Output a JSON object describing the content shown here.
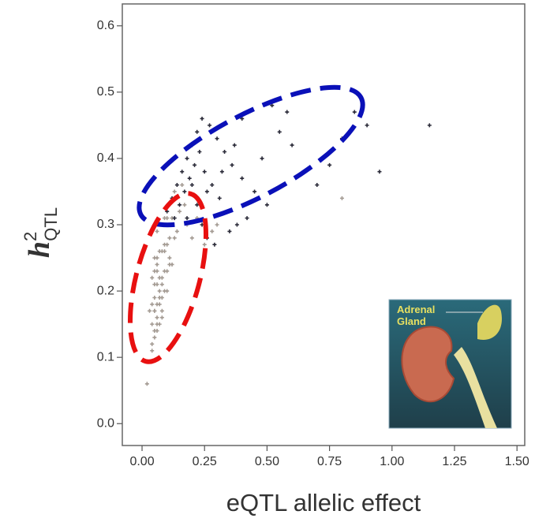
{
  "chart_data": {
    "type": "scatter",
    "xlabel": "eQTL allelic effect",
    "ylabel": {
      "base": "h",
      "sup": "2",
      "sub": "QTL"
    },
    "annotations": [
      "Adrenal",
      "Gland"
    ],
    "xlim": [
      -0.079,
      1.531
    ],
    "ylim": [
      -0.033,
      0.633
    ],
    "xticks": [
      {
        "value": 0,
        "label": "0.00"
      },
      {
        "value": 0.25,
        "label": "0.25"
      },
      {
        "value": 0.5,
        "label": "0.50"
      },
      {
        "value": 0.75,
        "label": "0.75"
      },
      {
        "value": 1,
        "label": "1.00"
      },
      {
        "value": 1.25,
        "label": "1.25"
      },
      {
        "value": 1.5,
        "label": "1.50"
      }
    ],
    "yticks": [
      {
        "value": 0,
        "label": "0.0"
      },
      0.1,
      0.2,
      0.3,
      0.4,
      0.5,
      0.6
    ],
    "series": [
      {
        "color": "#a39a92",
        "x": [
          0.02,
          0.04,
          0.05,
          0.06,
          0.07,
          0.08,
          0.05,
          0.06,
          0.07,
          0.08,
          0.09,
          0.1,
          0.06,
          0.07,
          0.08,
          0.09,
          0.1,
          0.11,
          0.12,
          0.05,
          0.06,
          0.07,
          0.08,
          0.09,
          0.1,
          0.11,
          0.13,
          0.14,
          0.06,
          0.07,
          0.08,
          0.09,
          0.1,
          0.12,
          0.15,
          0.17,
          0.04,
          0.05,
          0.06,
          0.07,
          0.08,
          0.09,
          0.11,
          0.03,
          0.04,
          0.05,
          0.06,
          0.08,
          0.04,
          0.05,
          0.06,
          0.07,
          0.05,
          0.06,
          0.04,
          0.05,
          0.18,
          0.2,
          0.22,
          0.25,
          0.28,
          0.3,
          0.13,
          0.16,
          0.8
        ],
        "values": [
          0.06,
          0.11,
          0.13,
          0.14,
          0.15,
          0.16,
          0.17,
          0.18,
          0.19,
          0.19,
          0.2,
          0.2,
          0.21,
          0.22,
          0.22,
          0.23,
          0.23,
          0.24,
          0.24,
          0.25,
          0.25,
          0.26,
          0.26,
          0.27,
          0.27,
          0.28,
          0.28,
          0.29,
          0.29,
          0.3,
          0.3,
          0.31,
          0.31,
          0.31,
          0.32,
          0.33,
          0.22,
          0.23,
          0.24,
          0.2,
          0.21,
          0.26,
          0.25,
          0.17,
          0.18,
          0.19,
          0.15,
          0.17,
          0.12,
          0.14,
          0.16,
          0.18,
          0.21,
          0.23,
          0.15,
          0.17,
          0.3,
          0.28,
          0.31,
          0.27,
          0.29,
          0.3,
          0.35,
          0.36,
          0.34
        ]
      },
      {
        "color": "#2a2a38",
        "x": [
          0.08,
          0.1,
          0.12,
          0.14,
          0.16,
          0.18,
          0.2,
          0.22,
          0.24,
          0.27,
          0.3,
          0.33,
          0.36,
          0.4,
          0.45,
          0.5,
          0.13,
          0.15,
          0.17,
          0.19,
          0.21,
          0.23,
          0.25,
          0.28,
          0.31,
          0.34,
          0.38,
          0.26,
          0.29,
          0.35,
          0.42,
          0.48,
          0.55,
          0.6,
          0.65,
          0.7,
          0.75,
          0.8,
          0.85,
          0.9,
          0.95,
          1.15,
          0.52,
          0.58,
          0.4,
          0.2,
          0.22,
          0.24,
          0.18,
          0.26,
          0.32,
          0.37
        ],
        "values": [
          0.3,
          0.32,
          0.34,
          0.36,
          0.38,
          0.4,
          0.42,
          0.44,
          0.46,
          0.45,
          0.43,
          0.41,
          0.39,
          0.37,
          0.35,
          0.33,
          0.31,
          0.33,
          0.35,
          0.37,
          0.39,
          0.41,
          0.38,
          0.36,
          0.34,
          0.32,
          0.3,
          0.28,
          0.27,
          0.29,
          0.31,
          0.4,
          0.44,
          0.42,
          0.38,
          0.36,
          0.39,
          0.43,
          0.47,
          0.45,
          0.38,
          0.45,
          0.48,
          0.47,
          0.46,
          0.36,
          0.33,
          0.3,
          0.31,
          0.35,
          0.38,
          0.42
        ]
      }
    ]
  }
}
